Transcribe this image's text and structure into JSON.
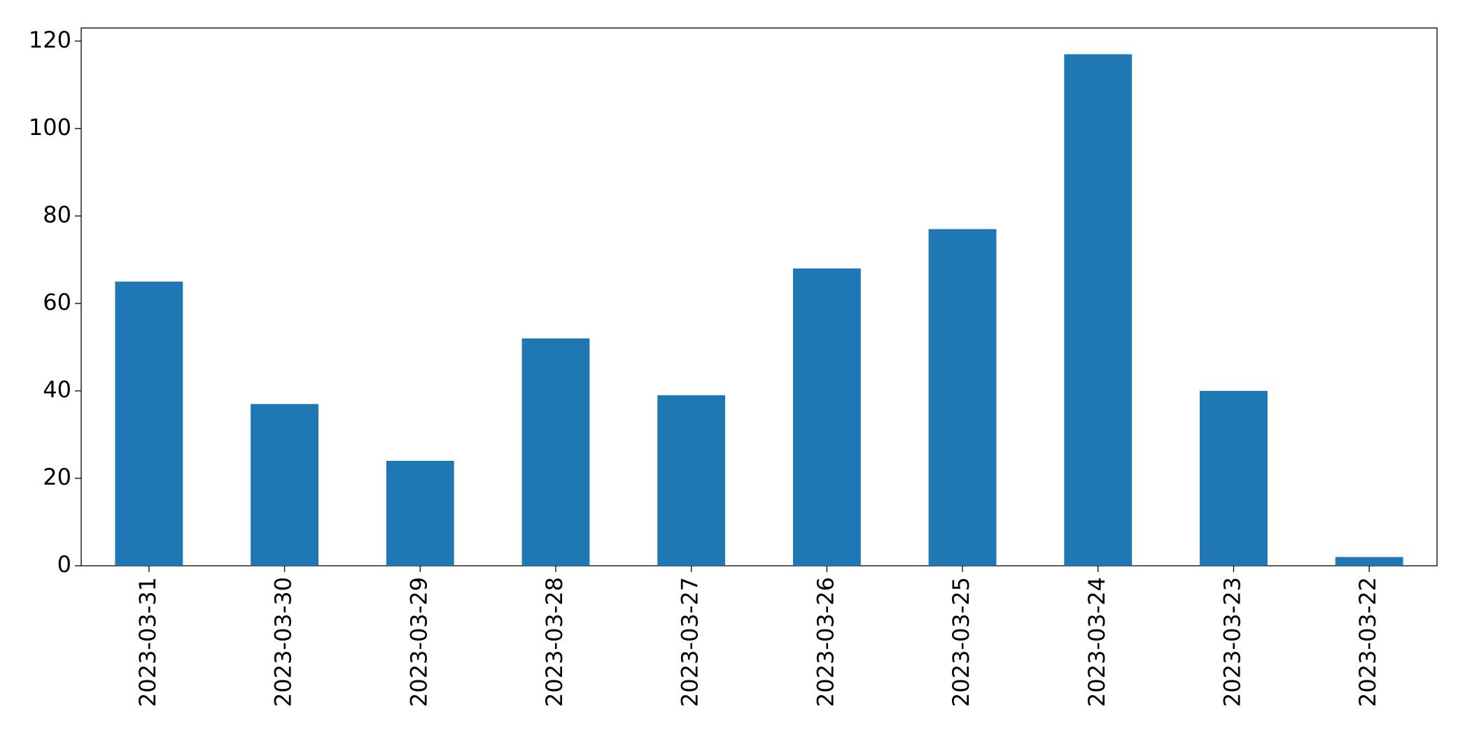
{
  "chart_data": {
    "type": "bar",
    "categories": [
      "2023-03-31",
      "2023-03-30",
      "2023-03-29",
      "2023-03-28",
      "2023-03-27",
      "2023-03-26",
      "2023-03-25",
      "2023-03-24",
      "2023-03-23",
      "2023-03-22"
    ],
    "values": [
      65,
      37,
      24,
      52,
      39,
      68,
      77,
      117,
      40,
      2
    ],
    "color": "#1f77b4",
    "ylim": [
      0,
      123
    ],
    "yticks": [
      0,
      20,
      40,
      60,
      80,
      100,
      120
    ],
    "grid": false
  }
}
